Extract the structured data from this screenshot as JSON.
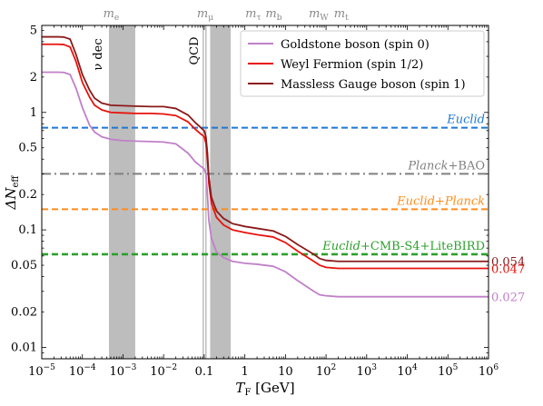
{
  "chart_data": {
    "type": "line",
    "xlabel": "T_F [GeV]",
    "ylabel": "ΔN_eff",
    "xscale": "log",
    "yscale": "log",
    "xlim": [
      1e-05,
      1000000.0
    ],
    "ylim": [
      0.008,
      5.5
    ],
    "legend_position": "top-right",
    "x_ticks": [
      {
        "value": 1e-05,
        "base": "10",
        "exp": "−5"
      },
      {
        "value": 0.0001,
        "base": "10",
        "exp": "−4"
      },
      {
        "value": 0.001,
        "base": "10",
        "exp": "−3"
      },
      {
        "value": 0.01,
        "base": "10",
        "exp": "−2"
      },
      {
        "value": 0.1,
        "base": "0.1",
        "exp": ""
      },
      {
        "value": 1,
        "base": "1",
        "exp": ""
      },
      {
        "value": 10,
        "base": "10",
        "exp": ""
      },
      {
        "value": 100,
        "base": "10",
        "exp": "2"
      },
      {
        "value": 1000,
        "base": "10",
        "exp": "3"
      },
      {
        "value": 10000,
        "base": "10",
        "exp": "4"
      },
      {
        "value": 100000,
        "base": "10",
        "exp": "5"
      },
      {
        "value": 1000000,
        "base": "10",
        "exp": "6"
      }
    ],
    "y_ticks": [
      {
        "value": 5,
        "label": "5"
      },
      {
        "value": 2,
        "label": "2"
      },
      {
        "value": 1,
        "label": "1"
      },
      {
        "value": 0.5,
        "label": "0.5"
      },
      {
        "value": 0.2,
        "label": "0.2"
      },
      {
        "value": 0.1,
        "label": "0.1"
      },
      {
        "value": 0.05,
        "label": "0.05"
      },
      {
        "value": 0.02,
        "label": "0.02"
      },
      {
        "value": 0.01,
        "label": "0.01"
      }
    ],
    "top_labels": [
      {
        "text": "m_e",
        "x": 0.000511
      },
      {
        "text": "m_μ",
        "x": 0.1057
      },
      {
        "text": "m_τ",
        "x": 1.78
      },
      {
        "text": "m_b",
        "x": 4.18
      },
      {
        "text": "m_W",
        "x": 80.4
      },
      {
        "text": "m_t",
        "x": 173
      }
    ],
    "bands": [
      {
        "x": [
          0.00045,
          0.002
        ],
        "label": "ν dec"
      },
      {
        "x": [
          0.14,
          0.45
        ],
        "label": ""
      }
    ],
    "vlines": [
      {
        "x": 0.105,
        "label": "QCD"
      }
    ],
    "hlines": [
      {
        "y": 0.74,
        "label_italic": "Euclid",
        "label_rest": "",
        "color": "#1f77d4",
        "style": "dashed"
      },
      {
        "y": 0.3,
        "label_italic": "Planck",
        "label_rest": "+BAO",
        "color": "#808080",
        "style": "dashdot"
      },
      {
        "y": 0.15,
        "label_italic": "Euclid+Planck",
        "label_rest": "",
        "color": "#ff8c1a",
        "style": "dashed"
      },
      {
        "y": 0.062,
        "label_italic": "Euclid",
        "label_rest": "+CMB-S4+LiteBIRD",
        "color": "#2ca02c",
        "style": "dashed"
      }
    ],
    "series": [
      {
        "name": "Goldstone boson (spin 0)",
        "color": "#c080c8",
        "end_label": "0.027",
        "x": [
          1e-05,
          1.5e-05,
          2.5e-05,
          3.5e-05,
          5e-05,
          7e-05,
          0.0001,
          0.00015,
          0.0002,
          0.0003,
          0.0005,
          0.001,
          0.002,
          0.005,
          0.01,
          0.02,
          0.04,
          0.06,
          0.08,
          0.09,
          0.1,
          0.11,
          0.12,
          0.13,
          0.15,
          0.2,
          0.3,
          0.5,
          1,
          2,
          5,
          10,
          20,
          50,
          70,
          100,
          200,
          1000,
          10000.0,
          100000.0,
          1000000.0
        ],
        "y": [
          2.2,
          2.2,
          2.2,
          2.19,
          2.1,
          1.6,
          1.1,
          0.78,
          0.68,
          0.62,
          0.59,
          0.575,
          0.57,
          0.565,
          0.56,
          0.54,
          0.45,
          0.38,
          0.35,
          0.34,
          0.33,
          0.3,
          0.2,
          0.12,
          0.085,
          0.065,
          0.058,
          0.054,
          0.052,
          0.051,
          0.049,
          0.044,
          0.037,
          0.03,
          0.028,
          0.0275,
          0.027,
          0.027,
          0.027,
          0.027,
          0.027
        ]
      },
      {
        "name": "Weyl Fermion (spin 1/2)",
        "color": "#e8120c",
        "end_label": "0.047",
        "x": [
          1e-05,
          1.5e-05,
          2.5e-05,
          3.5e-05,
          5e-05,
          7e-05,
          0.0001,
          0.00015,
          0.0002,
          0.0003,
          0.0005,
          0.001,
          0.002,
          0.005,
          0.01,
          0.02,
          0.04,
          0.06,
          0.08,
          0.09,
          0.1,
          0.11,
          0.12,
          0.13,
          0.15,
          0.2,
          0.3,
          0.5,
          1,
          2,
          5,
          10,
          20,
          50,
          70,
          100,
          200,
          1000,
          10000.0,
          100000.0,
          1000000.0
        ],
        "y": [
          3.8,
          3.8,
          3.8,
          3.78,
          3.6,
          2.7,
          1.8,
          1.35,
          1.15,
          1.05,
          1.0,
          0.99,
          0.98,
          0.98,
          0.97,
          0.94,
          0.83,
          0.72,
          0.66,
          0.64,
          0.62,
          0.55,
          0.4,
          0.25,
          0.17,
          0.128,
          0.11,
          0.1,
          0.095,
          0.091,
          0.087,
          0.078,
          0.066,
          0.054,
          0.05,
          0.048,
          0.047,
          0.047,
          0.047,
          0.047,
          0.047
        ]
      },
      {
        "name": "Massless Gauge boson (spin 1)",
        "color": "#8b1a1a",
        "end_label": "0.054",
        "x": [
          1e-05,
          1.5e-05,
          2.5e-05,
          3.5e-05,
          5e-05,
          7e-05,
          0.0001,
          0.00015,
          0.0002,
          0.0003,
          0.0005,
          0.001,
          0.002,
          0.005,
          0.01,
          0.02,
          0.04,
          0.06,
          0.08,
          0.09,
          0.1,
          0.11,
          0.12,
          0.13,
          0.15,
          0.2,
          0.3,
          0.5,
          1,
          2,
          5,
          10,
          20,
          50,
          70,
          100,
          200,
          1000,
          10000.0,
          100000.0,
          1000000.0
        ],
        "y": [
          4.4,
          4.4,
          4.4,
          4.38,
          4.2,
          3.1,
          2.1,
          1.55,
          1.32,
          1.2,
          1.15,
          1.14,
          1.13,
          1.12,
          1.12,
          1.08,
          0.95,
          0.82,
          0.75,
          0.72,
          0.7,
          0.62,
          0.45,
          0.28,
          0.19,
          0.145,
          0.125,
          0.113,
          0.107,
          0.103,
          0.098,
          0.088,
          0.075,
          0.062,
          0.057,
          0.055,
          0.054,
          0.054,
          0.054,
          0.054,
          0.054
        ]
      }
    ]
  }
}
